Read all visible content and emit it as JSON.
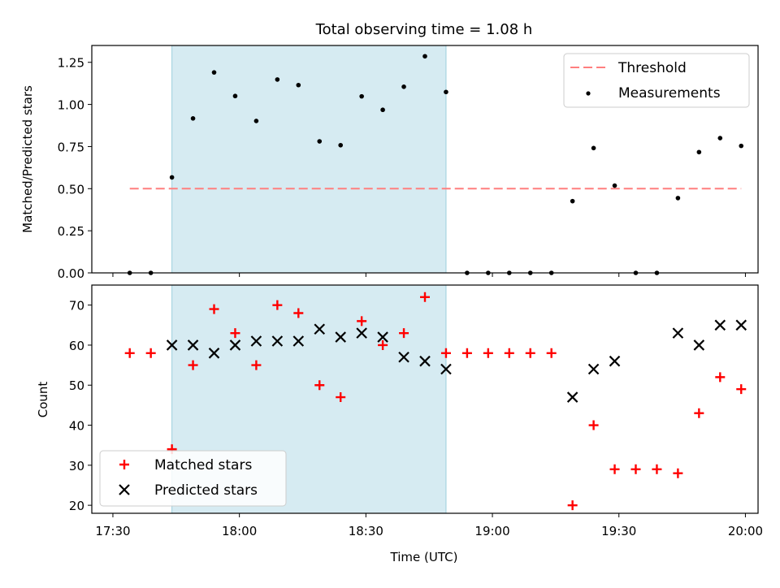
{
  "chart_data": [
    {
      "type": "scatter",
      "title": "Total observing time = 1.08 h",
      "ylabel": "Matched/Predicted stars",
      "ylim": [
        0,
        1.35
      ],
      "xlim": [
        "17:25",
        "20:03"
      ],
      "yticks": [
        "0.00",
        "0.25",
        "0.50",
        "0.75",
        "1.00",
        "1.25"
      ],
      "yticks_values": [
        0,
        0.25,
        0.5,
        0.75,
        1.0,
        1.25
      ],
      "shaded_interval": [
        "17:44",
        "18:49"
      ],
      "legend_position": "top-right",
      "threshold": {
        "name": "Threshold",
        "value": 0.5,
        "x_range": [
          "17:34",
          "19:59"
        ],
        "color": "#ff7f7f"
      },
      "series": [
        {
          "name": "Measurements",
          "color": "#000000",
          "x": [
            "17:34",
            "17:39",
            "17:44",
            "17:49",
            "17:54",
            "17:59",
            "18:04",
            "18:09",
            "18:14",
            "18:19",
            "18:24",
            "18:29",
            "18:34",
            "18:39",
            "18:44",
            "18:49",
            "18:54",
            "18:59",
            "19:04",
            "19:09",
            "19:14",
            "19:19",
            "19:24",
            "19:29",
            "19:34",
            "19:39",
            "19:44",
            "19:49",
            "19:54",
            "19:59"
          ],
          "y": [
            0,
            0,
            0.567,
            0.917,
            1.19,
            1.05,
            0.902,
            1.148,
            1.115,
            0.781,
            0.758,
            1.048,
            0.968,
            1.105,
            1.286,
            1.074,
            0,
            0,
            0,
            0,
            0,
            0.426,
            0.741,
            0.518,
            0,
            0,
            0.444,
            0.717,
            0.8,
            0.754
          ]
        }
      ]
    },
    {
      "type": "scatter",
      "xlabel": "Time (UTC)",
      "ylabel": "Count",
      "ylim": [
        18,
        75
      ],
      "yticks": [
        "20",
        "30",
        "40",
        "50",
        "60",
        "70"
      ],
      "yticks_values": [
        20,
        30,
        40,
        50,
        60,
        70
      ],
      "xticks": [
        "17:30",
        "18:00",
        "18:30",
        "19:00",
        "19:30",
        "20:00"
      ],
      "xlim": [
        "17:25",
        "20:03"
      ],
      "shaded_interval": [
        "17:44",
        "18:49"
      ],
      "legend_position": "bottom-left",
      "series": [
        {
          "name": "Matched stars",
          "marker": "+",
          "color": "#ff0000",
          "x": [
            "17:34",
            "17:39",
            "17:44",
            "17:49",
            "17:54",
            "17:59",
            "18:04",
            "18:09",
            "18:14",
            "18:19",
            "18:24",
            "18:29",
            "18:34",
            "18:39",
            "18:44",
            "18:49",
            "18:54",
            "18:59",
            "19:04",
            "19:09",
            "19:14",
            "19:19",
            "19:24",
            "19:29",
            "19:34",
            "19:39",
            "19:44",
            "19:49",
            "19:54",
            "19:59"
          ],
          "y": [
            58,
            58,
            34,
            55,
            69,
            63,
            55,
            70,
            68,
            50,
            47,
            66,
            60,
            63,
            72,
            58,
            58,
            58,
            58,
            58,
            58,
            20,
            40,
            29,
            29,
            29,
            28,
            43,
            52,
            49
          ]
        },
        {
          "name": "Predicted stars",
          "marker": "x",
          "color": "#000000",
          "x": [
            "17:44",
            "17:49",
            "17:54",
            "17:59",
            "18:04",
            "18:09",
            "18:14",
            "18:19",
            "18:24",
            "18:29",
            "18:34",
            "18:39",
            "18:44",
            "18:49",
            "19:19",
            "19:24",
            "19:29",
            "19:44",
            "19:49",
            "19:54",
            "19:59"
          ],
          "y": [
            60,
            60,
            58,
            60,
            61,
            61,
            61,
            64,
            62,
            63,
            62,
            57,
            56,
            54,
            47,
            54,
            56,
            63,
            60,
            65,
            65
          ]
        }
      ]
    }
  ]
}
